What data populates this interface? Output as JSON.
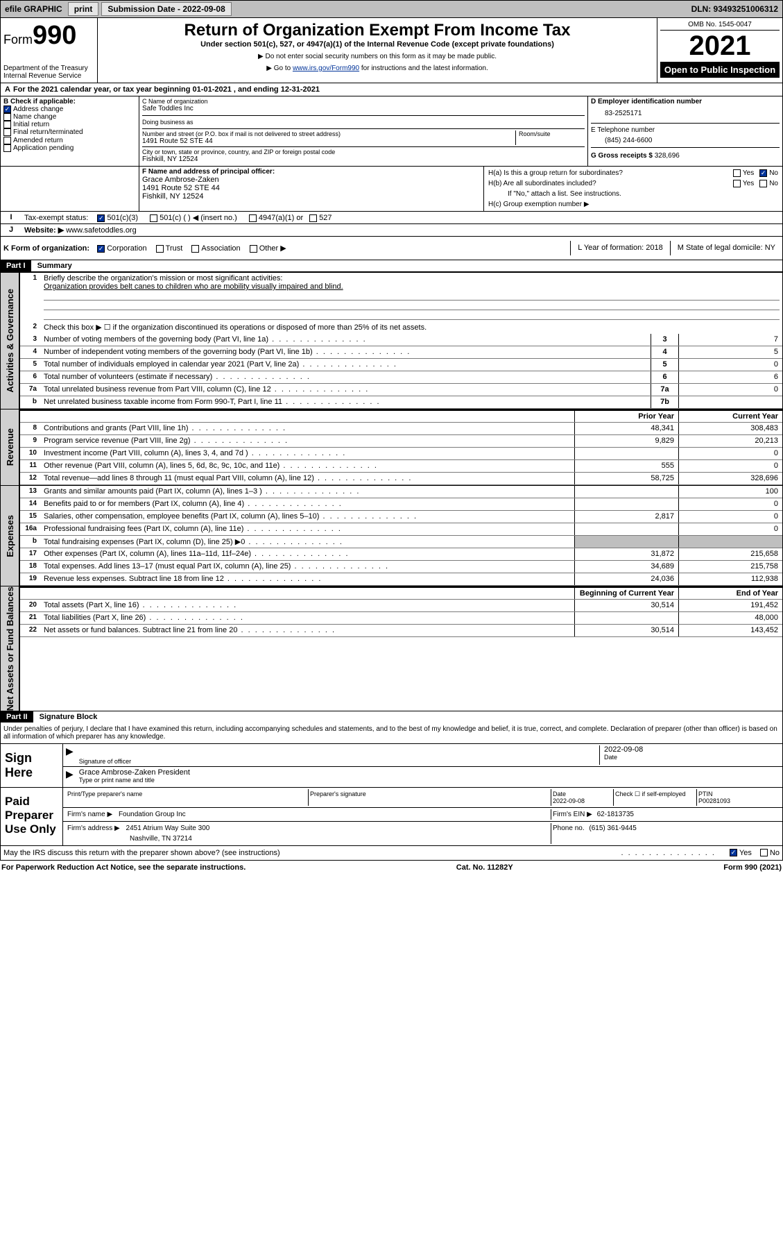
{
  "topbar": {
    "efile": "efile GRAPHIC",
    "print": "print",
    "submission_label": "Submission Date - 2022-09-08",
    "dln_label": "DLN: 93493251006312"
  },
  "header": {
    "form_label": "Form",
    "form_number": "990",
    "dept": "Department of the Treasury",
    "irs": "Internal Revenue Service",
    "title": "Return of Organization Exempt From Income Tax",
    "sub1": "Under section 501(c), 527, or 4947(a)(1) of the Internal Revenue Code (except private foundations)",
    "sub2": "▶ Do not enter social security numbers on this form as it may be made public.",
    "sub3_pre": "▶ Go to ",
    "sub3_link": "www.irs.gov/Form990",
    "sub3_post": " for instructions and the latest information.",
    "omb": "OMB No. 1545-0047",
    "year": "2021",
    "open": "Open to Public Inspection"
  },
  "A": {
    "text": "For the 2021 calendar year, or tax year beginning 01-01-2021   , and ending 12-31-2021"
  },
  "B": {
    "label": "B Check if applicable:",
    "items": [
      {
        "label": "Address change",
        "checked": true
      },
      {
        "label": "Name change",
        "checked": false
      },
      {
        "label": "Initial return",
        "checked": false
      },
      {
        "label": "Final return/terminated",
        "checked": false
      },
      {
        "label": "Amended return",
        "checked": false
      },
      {
        "label": "Application pending",
        "checked": false
      }
    ]
  },
  "C": {
    "name_label": "C Name of organization",
    "name": "Safe Toddles Inc",
    "dba_label": "Doing business as",
    "dba": "",
    "street_label": "Number and street (or P.O. box if mail is not delivered to street address)",
    "room_label": "Room/suite",
    "street": "1491 Route 52 STE 44",
    "city_label": "City or town, state or province, country, and ZIP or foreign postal code",
    "city": "Fishkill, NY  12524"
  },
  "D": {
    "label": "D Employer identification number",
    "value": "83-2525171"
  },
  "E": {
    "label": "E Telephone number",
    "value": "(845) 244-6600"
  },
  "G": {
    "label": "G Gross receipts $",
    "value": "328,696"
  },
  "F": {
    "label": "F Name and address of principal officer:",
    "name": "Grace Ambrose-Zaken",
    "street": "1491 Route 52 STE 44",
    "city": "Fishkill, NY  12524"
  },
  "H": {
    "a": "H(a)  Is this a group return for subordinates?",
    "a_yes": "Yes",
    "a_no": "No",
    "b": "H(b)  Are all subordinates included?",
    "b_yes": "Yes",
    "b_no": "No",
    "b_note": "If \"No,\" attach a list. See instructions.",
    "c": "H(c)  Group exemption number ▶"
  },
  "I": {
    "label": "Tax-exempt status:",
    "opts": [
      "501(c)(3)",
      "501(c) (  ) ◀ (insert no.)",
      "4947(a)(1) or",
      "527"
    ],
    "checked": 0
  },
  "J": {
    "label": "Website: ▶",
    "value": "www.safetoddles.org"
  },
  "K": {
    "label": "K Form of organization:",
    "opts": [
      "Corporation",
      "Trust",
      "Association",
      "Other ▶"
    ],
    "checked": 0
  },
  "L": {
    "label": "L Year of formation: 2018"
  },
  "M": {
    "label": "M State of legal domicile: NY"
  },
  "partI": {
    "bar": "Part I",
    "title": "Summary",
    "sideA": "Activities & Governance",
    "sideB": "Revenue",
    "sideC": "Expenses",
    "sideD": "Net Assets or Fund Balances",
    "l1_label": "Briefly describe the organization's mission or most significant activities:",
    "l1_text": "Organization provides belt canes to children who are mobility visually impaired and blind.",
    "l2": "Check this box ▶ ☐  if the organization discontinued its operations or disposed of more than 25% of its net assets.",
    "lines_gov": [
      {
        "n": "3",
        "desc": "Number of voting members of the governing body (Part VI, line 1a)",
        "box": "3",
        "val": "7"
      },
      {
        "n": "4",
        "desc": "Number of independent voting members of the governing body (Part VI, line 1b)",
        "box": "4",
        "val": "5"
      },
      {
        "n": "5",
        "desc": "Total number of individuals employed in calendar year 2021 (Part V, line 2a)",
        "box": "5",
        "val": "0"
      },
      {
        "n": "6",
        "desc": "Total number of volunteers (estimate if necessary)",
        "box": "6",
        "val": "6"
      },
      {
        "n": "7a",
        "desc": "Total unrelated business revenue from Part VIII, column (C), line 12",
        "box": "7a",
        "val": "0"
      },
      {
        "n": "b",
        "desc": "Net unrelated business taxable income from Form 990-T, Part I, line 11",
        "box": "7b",
        "val": ""
      }
    ],
    "col_prior": "Prior Year",
    "col_current": "Current Year",
    "lines_rev": [
      {
        "n": "8",
        "desc": "Contributions and grants (Part VIII, line 1h)",
        "p": "48,341",
        "c": "308,483"
      },
      {
        "n": "9",
        "desc": "Program service revenue (Part VIII, line 2g)",
        "p": "9,829",
        "c": "20,213"
      },
      {
        "n": "10",
        "desc": "Investment income (Part VIII, column (A), lines 3, 4, and 7d )",
        "p": "",
        "c": "0"
      },
      {
        "n": "11",
        "desc": "Other revenue (Part VIII, column (A), lines 5, 6d, 8c, 9c, 10c, and 11e)",
        "p": "555",
        "c": "0"
      },
      {
        "n": "12",
        "desc": "Total revenue—add lines 8 through 11 (must equal Part VIII, column (A), line 12)",
        "p": "58,725",
        "c": "328,696"
      }
    ],
    "lines_exp": [
      {
        "n": "13",
        "desc": "Grants and similar amounts paid (Part IX, column (A), lines 1–3 )",
        "p": "",
        "c": "100"
      },
      {
        "n": "14",
        "desc": "Benefits paid to or for members (Part IX, column (A), line 4)",
        "p": "",
        "c": "0"
      },
      {
        "n": "15",
        "desc": "Salaries, other compensation, employee benefits (Part IX, column (A), lines 5–10)",
        "p": "2,817",
        "c": "0"
      },
      {
        "n": "16a",
        "desc": "Professional fundraising fees (Part IX, column (A), line 11e)",
        "p": "",
        "c": "0"
      },
      {
        "n": "b",
        "desc": "Total fundraising expenses (Part IX, column (D), line 25) ▶0",
        "p": "shade",
        "c": "shade"
      },
      {
        "n": "17",
        "desc": "Other expenses (Part IX, column (A), lines 11a–11d, 11f–24e)",
        "p": "31,872",
        "c": "215,658"
      },
      {
        "n": "18",
        "desc": "Total expenses. Add lines 13–17 (must equal Part IX, column (A), line 25)",
        "p": "34,689",
        "c": "215,758"
      },
      {
        "n": "19",
        "desc": "Revenue less expenses. Subtract line 18 from line 12",
        "p": "24,036",
        "c": "112,938"
      }
    ],
    "col_begin": "Beginning of Current Year",
    "col_end": "End of Year",
    "lines_net": [
      {
        "n": "20",
        "desc": "Total assets (Part X, line 16)",
        "p": "30,514",
        "c": "191,452"
      },
      {
        "n": "21",
        "desc": "Total liabilities (Part X, line 26)",
        "p": "",
        "c": "48,000"
      },
      {
        "n": "22",
        "desc": "Net assets or fund balances. Subtract line 21 from line 20",
        "p": "30,514",
        "c": "143,452"
      }
    ]
  },
  "partII": {
    "bar": "Part II",
    "title": "Signature Block",
    "decl": "Under penalties of perjury, I declare that I have examined this return, including accompanying schedules and statements, and to the best of my knowledge and belief, it is true, correct, and complete. Declaration of preparer (other than officer) is based on all information of which preparer has any knowledge.",
    "sign_here": "Sign Here",
    "sig_officer": "Signature of officer",
    "sig_date": "Date",
    "sig_date_val": "2022-09-08",
    "sig_name_title": "Grace Ambrose-Zaken  President",
    "sig_name_label": "Type or print name and title",
    "paid": "Paid Preparer Use Only",
    "prep_name_label": "Print/Type preparer's name",
    "prep_sig_label": "Preparer's signature",
    "prep_date_label": "Date",
    "prep_date": "2022-09-08",
    "prep_check": "Check ☐ if self-employed",
    "ptin_label": "PTIN",
    "ptin": "P00281093",
    "firm_name_label": "Firm's name    ▶",
    "firm_name": "Foundation Group Inc",
    "firm_ein_label": "Firm's EIN ▶",
    "firm_ein": "62-1813735",
    "firm_addr_label": "Firm's address ▶",
    "firm_addr1": "2451 Atrium Way Suite 300",
    "firm_addr2": "Nashville, TN  37214",
    "firm_phone_label": "Phone no.",
    "firm_phone": "(615) 361-9445",
    "discuss": "May the IRS discuss this return with the preparer shown above? (see instructions)",
    "discuss_yes": "Yes",
    "discuss_no": "No"
  },
  "footer": {
    "left": "For Paperwork Reduction Act Notice, see the separate instructions.",
    "mid": "Cat. No. 11282Y",
    "right": "Form 990 (2021)"
  },
  "colors": {
    "topbar_bg": "#bfbfbf",
    "btn_bg": "#e6e6e6",
    "link": "#003399",
    "shade": "#bfbfbf",
    "black": "#000000",
    "check_blue": "#003399"
  }
}
